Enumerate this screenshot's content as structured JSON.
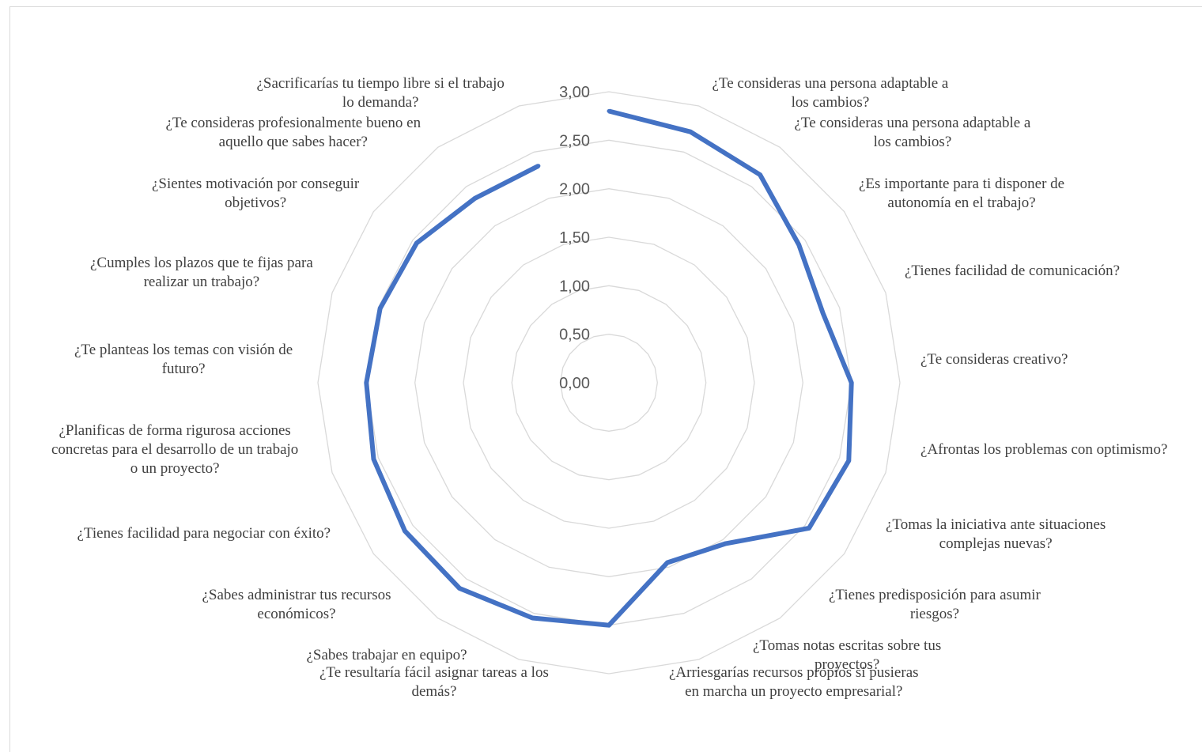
{
  "caption": "",
  "chart_data": {
    "type": "radar",
    "title": "",
    "grid": true,
    "legend": "none",
    "series_color": "#4472c4",
    "grid_color": "#d9d9d9",
    "rmin": 0,
    "rmax": 3,
    "ticks": [
      {
        "value": 0,
        "label": "0,00"
      },
      {
        "value": 0.5,
        "label": "0,50"
      },
      {
        "value": 1,
        "label": "1,00"
      },
      {
        "value": 1.5,
        "label": "1,50"
      },
      {
        "value": 2,
        "label": "2,00"
      },
      {
        "value": 2.5,
        "label": "2,50"
      },
      {
        "value": 3,
        "label": "3,00"
      }
    ],
    "categories": [
      [
        "¿Te consideras una persona adaptable a",
        "los cambios?"
      ],
      [
        "¿Te consideras una persona adaptable a",
        "los cambios?"
      ],
      [
        "¿Es importante para ti disponer de",
        "autonomía en el trabajo?"
      ],
      [
        "¿Tienes facilidad de comunicación?"
      ],
      [
        "¿Te consideras creativo?"
      ],
      [
        "¿Afrontas los problemas con optimismo?"
      ],
      [
        "¿Tomas la iniciativa ante situaciones",
        "complejas nuevas?"
      ],
      [
        "¿Tienes predisposición para asumir",
        "riesgos?"
      ],
      [
        "¿Tomas notas escritas sobre tus",
        "proyectos?"
      ],
      [
        "¿Arriesgarías recursos propios si pusieras",
        "en marcha un proyecto empresarial?"
      ],
      [
        "¿Te resultaría fácil asignar tareas a los",
        "demás?"
      ],
      [
        "¿Sabes trabajar en equipo?"
      ],
      [
        "¿Sabes administrar tus recursos",
        "económicos?"
      ],
      [
        "¿Tienes facilidad para negociar con éxito?"
      ],
      [
        "¿Planificas de forma rigurosa acciones",
        "concretas para el desarrollo de un trabajo",
        "o un proyecto?"
      ],
      [
        "¿Te planteas los temas con visión de",
        "futuro?"
      ],
      [
        "¿Cumples los plazos que te fijas para",
        "realizar un trabajo?"
      ],
      [
        "¿Sientes motivación por conseguir",
        "objetivos?"
      ],
      [
        "¿Te consideras profesionalmente bueno en",
        "aquello que sabes hacer?"
      ],
      [
        "¿Sacrificarías tu tiempo libre si el trabajo",
        "lo demanda?"
      ]
    ],
    "series": [
      {
        "values": [
          2.8,
          2.72,
          2.65,
          2.42,
          2.32,
          2.5,
          2.6,
          2.55,
          2.05,
          1.95,
          2.5,
          2.55,
          2.62,
          2.6,
          2.55,
          2.5,
          2.48,
          2.45,
          2.35,
          2.35
        ]
      }
    ]
  }
}
